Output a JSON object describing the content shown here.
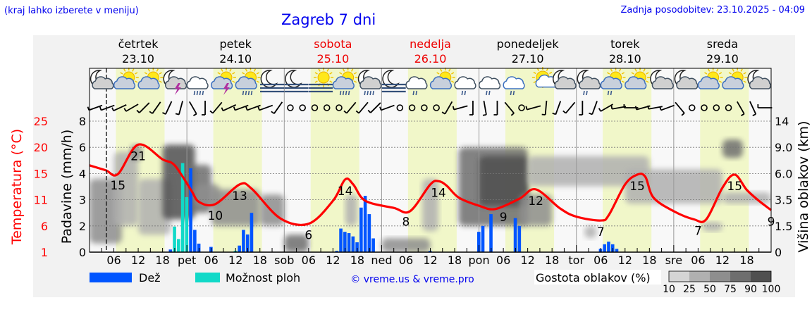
{
  "header": {
    "hint": "(kraj lahko izberete v meniju)",
    "title": "Zagreb 7 dni",
    "updated_label": "Zadnja posodobitev:",
    "updated_value": "23.10.2025 - 04:09"
  },
  "colors": {
    "link": "#0000ee",
    "temperature": "#ff0000",
    "rain": "#0055ff",
    "showers": "#11d9c8",
    "daylight": "#f1f7c9",
    "weekend": "#ee0000",
    "plot_bg": "#f8f8f8",
    "panel_bg": "#f2f2f2"
  },
  "days": [
    {
      "name": "četrtek",
      "date": "23.10",
      "weekend": false
    },
    {
      "name": "petek",
      "date": "24.10",
      "weekend": false
    },
    {
      "name": "sobota",
      "date": "25.10",
      "weekend": true
    },
    {
      "name": "nedelja",
      "date": "26.10",
      "weekend": true
    },
    {
      "name": "ponedeljek",
      "date": "27.10",
      "weekend": false
    },
    {
      "name": "torek",
      "date": "28.10",
      "weekend": false
    },
    {
      "name": "sreda",
      "date": "29.10",
      "weekend": false
    }
  ],
  "daylight": {
    "from": "06:30",
    "to": "18:30"
  },
  "icons": [
    "moon-cloud",
    "sun-cloud",
    "sun-cloud",
    "moon-cloud-thunder",
    "cloud-rain",
    "sun-cloud-thunder",
    "sun-cloud-rain",
    "moon-fog",
    "moon-fog",
    "sun-fog",
    "sun-cloud-rain",
    "moon-cloud-rain",
    "moon-fog",
    "cloud-drizzle",
    "sun-cloud",
    "cloud-drizzle",
    "cloud-drizzle",
    "cloud-drizzle",
    "sun-small-cloud",
    "moon-cloud",
    "moon-cloud-drizzle",
    "sun-cloud-drizzle",
    "sun-cloud",
    "moon-cloud",
    "moon-cloud",
    "sun-cloud",
    "sun-cloud",
    "moon-cloud"
  ],
  "wind_dir_deg": [
    70,
    70,
    65,
    60,
    45,
    35,
    25,
    15,
    330,
    0,
    40,
    65,
    70,
    70,
    70,
    35,
    "calm",
    "calm",
    "calm",
    "calm",
    "calm",
    40,
    40,
    45,
    70,
    "calm",
    "calm",
    "calm",
    "calm",
    30,
    75,
    0,
    350,
    0,
    320,
    "calm",
    75,
    5,
    20,
    40,
    0,
    20,
    60,
    80,
    90,
    75,
    80,
    70,
    320,
    "calm",
    "calm",
    "calm",
    "calm",
    330,
    335,
    90
  ],
  "chart_data": {
    "type": "line+bar",
    "left_axis_temperature": {
      "title": "Temperatura (°C)",
      "ticks": [
        "25",
        "20",
        "15",
        "11",
        "6",
        "1"
      ],
      "range": [
        1,
        25
      ]
    },
    "left_axis_rain": {
      "title": "Padavine (mm/h)",
      "ticks": [
        "8",
        "6",
        "4",
        "3",
        "2",
        "0"
      ]
    },
    "right_axis_cloud": {
      "title": "Višina oblakov (km)",
      "ticks": [
        "14",
        "9.0",
        "6.0",
        "3.5",
        "1.5",
        "0"
      ]
    },
    "x_axis": {
      "day_abbr": [
        "",
        "pet",
        "sob",
        "ned",
        "pon",
        "tor",
        "sre"
      ],
      "hour_labels": [
        "06",
        "12",
        "18"
      ]
    },
    "grid": true,
    "temperature": [
      [
        "23.10 00",
        16.9
      ],
      [
        "23.10 04",
        16.0
      ],
      [
        "23.10 07",
        15.3
      ],
      [
        "23.10 12",
        20.7
      ],
      [
        "23.10 18",
        18.0
      ],
      [
        "23.10 21",
        16.9
      ],
      [
        "24.10 01",
        12.4
      ],
      [
        "24.10 03",
        10.2
      ],
      [
        "24.10 07",
        9.8
      ],
      [
        "24.10 13",
        13.4
      ],
      [
        "24.10 16",
        12.6
      ],
      [
        "24.10 23",
        7.2
      ],
      [
        "25.10 06",
        6.2
      ],
      [
        "25.10 12",
        10.4
      ],
      [
        "25.10 15",
        14.3
      ],
      [
        "25.10 17",
        13.4
      ],
      [
        "25.10 20",
        10.4
      ],
      [
        "26.10 03",
        9.1
      ],
      [
        "26.10 07",
        8.5
      ],
      [
        "26.10 12",
        13.4
      ],
      [
        "26.10 14",
        14.0
      ],
      [
        "26.10 16",
        13.2
      ],
      [
        "26.10 19",
        11.0
      ],
      [
        "27.10 00",
        9.5
      ],
      [
        "27.10 04",
        8.9
      ],
      [
        "27.10 10",
        10.8
      ],
      [
        "27.10 14",
        12.5
      ],
      [
        "27.10 20",
        9.0
      ],
      [
        "28.10 00",
        7.5
      ],
      [
        "28.10 06",
        6.8
      ],
      [
        "28.10 08",
        7.8
      ],
      [
        "28.10 12",
        13.4
      ],
      [
        "28.10 15",
        15.2
      ],
      [
        "28.10 17",
        14.8
      ],
      [
        "28.10 19",
        11.0
      ],
      [
        "29.10 00",
        8.5
      ],
      [
        "29.10 05",
        7.0
      ],
      [
        "29.10 08",
        7.0
      ],
      [
        "29.10 12",
        12.8
      ],
      [
        "29.10 15",
        15.2
      ],
      [
        "29.10 18",
        12.4
      ],
      [
        "29.10 21",
        10.4
      ],
      [
        "29.10 24",
        8.7
      ]
    ],
    "temperature_labels": [
      [
        "23.10 07",
        "15"
      ],
      [
        "23.10 12",
        "21"
      ],
      [
        "24.10 07",
        "10"
      ],
      [
        "24.10 13",
        "13"
      ],
      [
        "25.10 06",
        "6"
      ],
      [
        "25.10 15",
        "14"
      ],
      [
        "26.10 06",
        "8"
      ],
      [
        "26.10 14",
        "14"
      ],
      [
        "27.10 06",
        "9"
      ],
      [
        "27.10 14",
        "12"
      ],
      [
        "28.10 06",
        "7"
      ],
      [
        "28.10 15",
        "15"
      ],
      [
        "29.10 06",
        "7"
      ],
      [
        "29.10 15",
        "15"
      ],
      [
        "29.10 24",
        "9"
      ]
    ],
    "precipitation": [
      {
        "t": "23.10 20",
        "v": 0.2,
        "kind": "rain"
      },
      {
        "t": "23.10 21",
        "v": 1.95,
        "kind": "showers"
      },
      {
        "t": "23.10 22",
        "v": 1.0,
        "kind": "showers"
      },
      {
        "t": "23.10 23",
        "v": 4.8,
        "kind": "showers"
      },
      {
        "t": "24.10 00",
        "v": 3.1,
        "kind": "showers"
      },
      {
        "t": "24.10 01",
        "v": 4.4,
        "kind": "rain"
      },
      {
        "t": "24.10 02",
        "v": 1.7,
        "kind": "rain"
      },
      {
        "t": "24.10 03",
        "v": 0.65,
        "kind": "rain"
      },
      {
        "t": "24.10 06",
        "v": 0.4,
        "kind": "rain"
      },
      {
        "t": "24.10 12",
        "v": 0.1,
        "kind": "showers"
      },
      {
        "t": "24.10 13",
        "v": 0.5,
        "kind": "rain"
      },
      {
        "t": "24.10 14",
        "v": 1.7,
        "kind": "rain"
      },
      {
        "t": "24.10 15",
        "v": 1.35,
        "kind": "rain"
      },
      {
        "t": "24.10 16",
        "v": 2.5,
        "kind": "rain"
      },
      {
        "t": "25.10 13",
        "v": 0.1,
        "kind": "rain"
      },
      {
        "t": "25.10 14",
        "v": 1.8,
        "kind": "rain"
      },
      {
        "t": "25.10 15",
        "v": 1.55,
        "kind": "rain"
      },
      {
        "t": "25.10 16",
        "v": 1.45,
        "kind": "rain"
      },
      {
        "t": "25.10 17",
        "v": 1.2,
        "kind": "rain"
      },
      {
        "t": "25.10 18",
        "v": 0.75,
        "kind": "rain"
      },
      {
        "t": "25.10 19",
        "v": 2.7,
        "kind": "rain"
      },
      {
        "t": "25.10 20",
        "v": 3.15,
        "kind": "rain"
      },
      {
        "t": "25.10 21",
        "v": 2.45,
        "kind": "rain"
      },
      {
        "t": "25.10 22",
        "v": 1.05,
        "kind": "rain"
      },
      {
        "t": "26.10 12",
        "v": 0.1,
        "kind": "rain"
      },
      {
        "t": "27.10 00",
        "v": 1.55,
        "kind": "rain"
      },
      {
        "t": "27.10 01",
        "v": 2.0,
        "kind": "rain"
      },
      {
        "t": "27.10 03",
        "v": 2.45,
        "kind": "rain"
      },
      {
        "t": "27.10 09",
        "v": 2.3,
        "kind": "rain"
      },
      {
        "t": "27.10 10",
        "v": 2.0,
        "kind": "rain"
      },
      {
        "t": "28.10 06",
        "v": 0.25,
        "kind": "rain"
      },
      {
        "t": "28.10 07",
        "v": 0.6,
        "kind": "rain"
      },
      {
        "t": "28.10 08",
        "v": 0.8,
        "kind": "rain"
      },
      {
        "t": "28.10 09",
        "v": 0.6,
        "kind": "rain"
      },
      {
        "t": "28.10 10",
        "v": 0.25,
        "kind": "rain"
      }
    ],
    "cloud_cover": [
      {
        "from": "23.10 00",
        "to": "23.10 08",
        "lo": 0.5,
        "hi": 5.5,
        "density": 50
      },
      {
        "from": "23.10 06",
        "to": "23.10 12",
        "lo": 1.5,
        "hi": 8.5,
        "density": 25
      },
      {
        "from": "23.10 10",
        "to": "23.10 13",
        "lo": 7.5,
        "hi": 9.5,
        "density": 50
      },
      {
        "from": "23.10 12",
        "to": "23.10 20",
        "lo": 1.0,
        "hi": 5.5,
        "density": 40
      },
      {
        "from": "23.10 18",
        "to": "24.10 02",
        "lo": 2.0,
        "hi": 9.5,
        "density": 90
      },
      {
        "from": "24.10 00",
        "to": "24.10 06",
        "lo": 2.5,
        "hi": 7.0,
        "density": 75
      },
      {
        "from": "24.10 02",
        "to": "24.10 08",
        "lo": 3.0,
        "hi": 5.0,
        "density": 60
      },
      {
        "from": "24.10 06",
        "to": "24.10 18",
        "lo": 1.5,
        "hi": 4.5,
        "density": 50
      },
      {
        "from": "24.10 18",
        "to": "25.10 00",
        "lo": 1.5,
        "hi": 4.0,
        "density": 50
      },
      {
        "from": "25.10 00",
        "to": "25.10 06",
        "lo": 0.0,
        "hi": 1.0,
        "density": 75
      },
      {
        "from": "25.10 15",
        "to": "25.10 18",
        "lo": 1.5,
        "hi": 4.0,
        "density": 40
      },
      {
        "from": "26.10 00",
        "to": "26.10 12",
        "lo": 0.0,
        "hi": 0.8,
        "density": 50
      },
      {
        "from": "26.10 10",
        "to": "26.10 14",
        "lo": 1.2,
        "hi": 5.5,
        "density": 25
      },
      {
        "from": "26.10 19",
        "to": "27.10 12",
        "lo": 1.5,
        "hi": 9.0,
        "density": 75
      },
      {
        "from": "27.10 00",
        "to": "27.10 12",
        "lo": 3.0,
        "hi": 8.0,
        "density": 90
      },
      {
        "from": "27.10 10",
        "to": "27.10 18",
        "lo": 1.5,
        "hi": 4.0,
        "density": 50
      },
      {
        "from": "27.10 12",
        "to": "28.10 18",
        "lo": 4.8,
        "hi": 8.0,
        "density": 40
      },
      {
        "from": "28.10 02",
        "to": "28.10 05",
        "lo": 0.8,
        "hi": 1.5,
        "density": 25
      },
      {
        "from": "28.10 12",
        "to": "29.10 12",
        "lo": 3.2,
        "hi": 6.5,
        "density": 40
      },
      {
        "from": "29.10 07",
        "to": "29.10 12",
        "lo": 1.2,
        "hi": 1.8,
        "density": 25
      },
      {
        "from": "29.10 12",
        "to": "29.10 17",
        "lo": 7.8,
        "hi": 10.5,
        "density": 75
      },
      {
        "from": "29.10 12",
        "to": "29.10 24",
        "lo": 3.2,
        "hi": 4.2,
        "density": 25
      }
    ]
  },
  "legend": {
    "rain_label": "Dež",
    "showers_label": "Možnost ploh",
    "copyright": "© vreme.us & vreme.pro",
    "cloud_density_label": "Gostota oblakov (%)",
    "cloud_density_ticks": [
      "10",
      "25",
      "50",
      "75",
      "90",
      "100"
    ],
    "cloud_density_colors": [
      "#d4d4d4",
      "#b0b0b0",
      "#8e8e8e",
      "#6e6e6e",
      "#505050"
    ]
  }
}
